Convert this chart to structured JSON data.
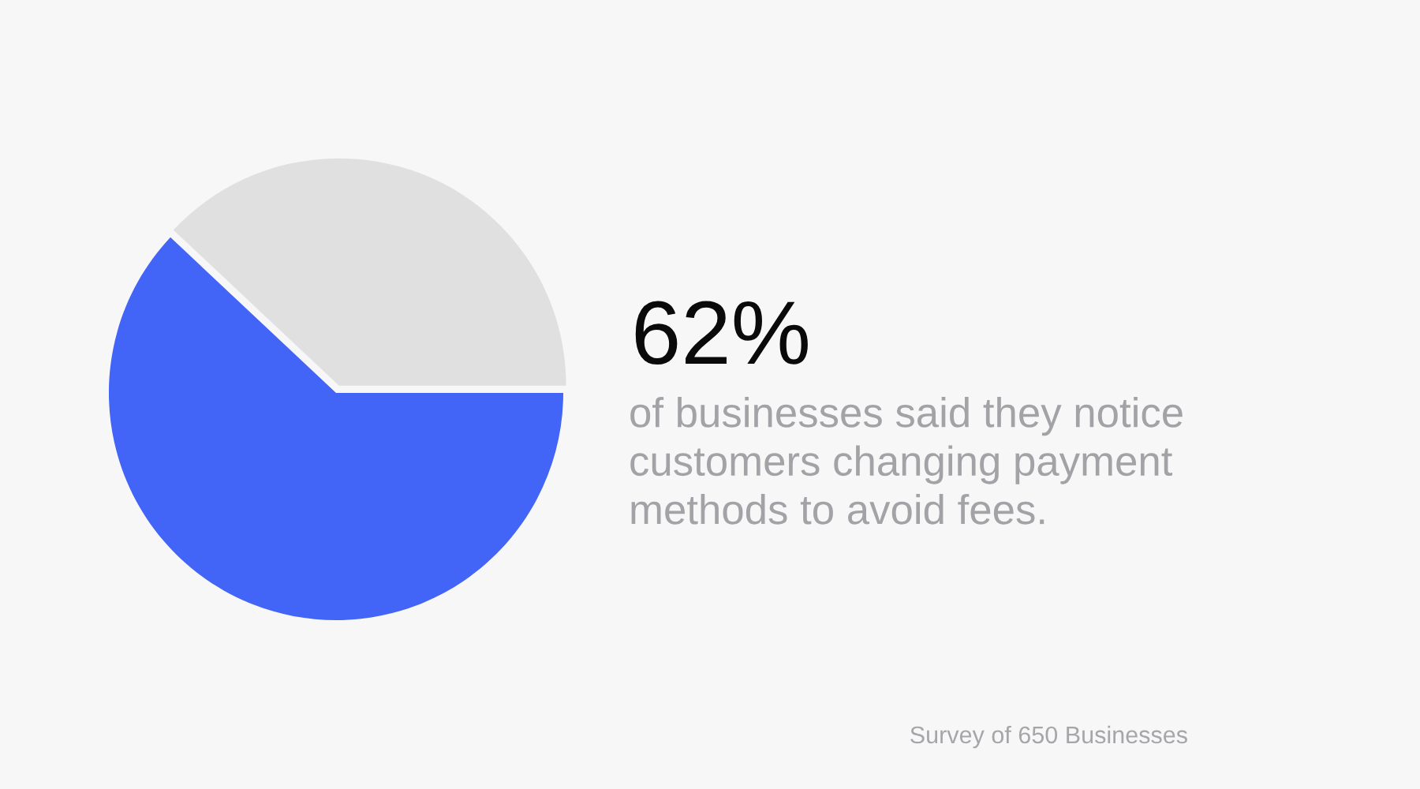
{
  "chart_data": {
    "type": "pie",
    "title": "62%",
    "subtitle": "of businesses said they notice\ncustomers changing payment\nmethods to avoid fees.",
    "categories": [
      null,
      null
    ],
    "values": [
      62,
      38
    ],
    "colors": [
      "#4264f7",
      "#e0e0e0"
    ],
    "annotations": [
      "Survey of 650 Businesses"
    ]
  }
}
